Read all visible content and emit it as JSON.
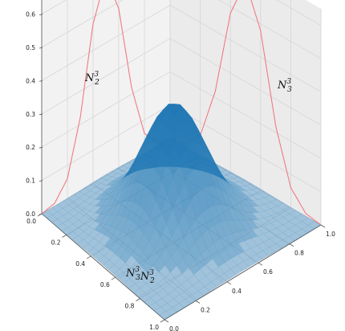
{
  "chart_data": {
    "type": "surface3d",
    "title": "",
    "xlabel": "",
    "ylabel": "",
    "zlabel": "",
    "x_axis": {
      "ticks": [
        0.0,
        0.2,
        0.4,
        0.6,
        0.8,
        1.0
      ],
      "tick_labels": [
        "0.0",
        "0.2",
        "0.4",
        "0.6",
        "0.8",
        "1.0"
      ],
      "range": [
        0,
        1
      ]
    },
    "y_axis": {
      "ticks": [
        0.0,
        0.2,
        0.4,
        0.6,
        0.8,
        1.0
      ],
      "tick_labels": [
        "0.0",
        "0.2",
        "0.4",
        "0.6",
        "0.8",
        "1.0"
      ],
      "range": [
        0,
        1
      ]
    },
    "z_axis": {
      "ticks": [
        0.0,
        0.1,
        0.2,
        0.3,
        0.4,
        0.5,
        0.6
      ],
      "tick_labels": [
        "0.0",
        "0.1",
        "0.2",
        "0.3",
        "0.4",
        "0.5",
        "0.6"
      ],
      "range": [
        0,
        0.65
      ]
    },
    "curves": [
      {
        "label": "N_2^3",
        "label_text": {
          "base": "N",
          "sub": "2",
          "sup": "3"
        },
        "color": "#f07a82",
        "x": [
          0.0,
          0.1,
          0.2,
          0.3,
          0.4,
          0.5,
          0.6,
          0.7,
          0.8,
          0.9,
          1.0
        ],
        "z": [
          0.0,
          0.008,
          0.06,
          0.22,
          0.48,
          0.6,
          0.48,
          0.22,
          0.06,
          0.008,
          0.0
        ]
      },
      {
        "label": "N_3^3",
        "label_text": {
          "base": "N",
          "sub": "3",
          "sup": "3"
        },
        "color": "#f07a82",
        "x": [
          0.0,
          0.1,
          0.2,
          0.3,
          0.4,
          0.5,
          0.6,
          0.7,
          0.8,
          0.9,
          1.0
        ],
        "z": [
          0.0,
          0.008,
          0.06,
          0.22,
          0.48,
          0.6,
          0.48,
          0.22,
          0.06,
          0.008,
          0.0
        ]
      }
    ],
    "surface": {
      "label": "N_3^3 N_2^3",
      "label_text": {
        "parts": [
          {
            "base": "N",
            "sub": "3",
            "sup": "3"
          },
          {
            "base": "N",
            "sub": "2",
            "sup": "3"
          }
        ]
      },
      "color": "#1f77b4",
      "peak": {
        "x": 0.5,
        "y": 0.5,
        "z": 0.36
      }
    },
    "grid": true
  }
}
